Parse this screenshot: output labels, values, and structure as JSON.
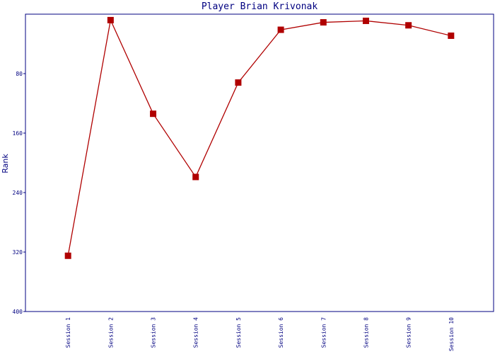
{
  "chart_data": {
    "type": "line",
    "title": "Player Brian Krivonak",
    "y_label": "Rank",
    "categories": [
      "Session 1",
      "Session 2",
      "Session 3",
      "Session 4",
      "Session 5",
      "Session 6",
      "Session 7",
      "Session 8",
      "Session 9",
      "Session 10"
    ],
    "series": [
      {
        "name": "Rank",
        "color": "#b00000",
        "values": [
          325,
          8,
          134,
          219,
          92,
          21,
          11,
          9,
          15,
          29
        ]
      }
    ],
    "ylim": [
      0,
      400
    ],
    "y_inverted": true,
    "yticks": [
      80,
      160,
      240,
      320,
      400
    ],
    "grid": false
  }
}
